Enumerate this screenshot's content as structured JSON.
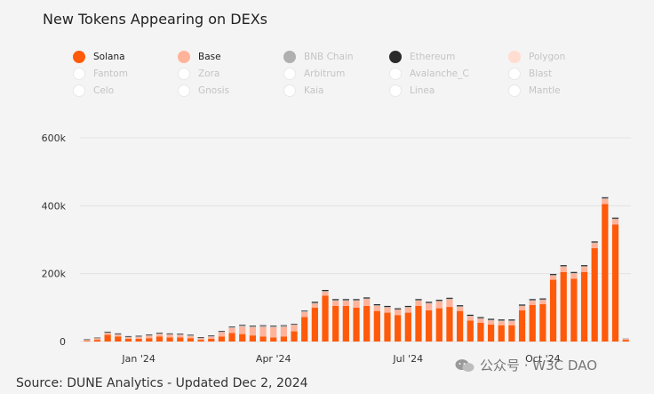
{
  "title": "New Tokens Appearing on DEXs",
  "legend": [
    {
      "name": "Solana",
      "color": "#ff5a0a",
      "active": true
    },
    {
      "name": "Base",
      "color": "#ffb39a",
      "active": true
    },
    {
      "name": "BNB Chain",
      "color": "#b0b0b0",
      "active": false
    },
    {
      "name": "Ethereum",
      "color": "#2a2a2a",
      "active": false
    },
    {
      "name": "Polygon",
      "color": "#ffddd0",
      "active": false
    },
    {
      "name": "Fantom",
      "color": "#ffffff",
      "active": false
    },
    {
      "name": "Zora",
      "color": "#ffffff",
      "active": false
    },
    {
      "name": "Arbitrum",
      "color": "#ffffff",
      "active": false
    },
    {
      "name": "Avalanche_C",
      "color": "#ffffff",
      "active": false
    },
    {
      "name": "Blast",
      "color": "#ffffff",
      "active": false
    },
    {
      "name": "Celo",
      "color": "#ffffff",
      "active": false
    },
    {
      "name": "Gnosis",
      "color": "#ffffff",
      "active": false
    },
    {
      "name": "Kaia",
      "color": "#ffffff",
      "active": false
    },
    {
      "name": "Linea",
      "color": "#ffffff",
      "active": false
    },
    {
      "name": "Mantle",
      "color": "#ffffff",
      "active": false
    }
  ],
  "source": "Source: DUNE Analytics - Updated Dec 2, 2024",
  "watermark": "公众号 · W3C DAO",
  "chart_data": {
    "type": "bar",
    "stacked": true,
    "interval": "weekly",
    "x_ticks": [
      "Jan '24",
      "Apr '24",
      "Jul '24",
      "Oct '24"
    ],
    "y_ticks": [
      "0",
      "200k",
      "400k",
      "600k"
    ],
    "ylim": [
      0,
      600000
    ],
    "grid": true,
    "series": [
      {
        "name": "Solana",
        "color": "#ff5a0a",
        "values": [
          2000,
          5000,
          20000,
          15000,
          8000,
          8000,
          10000,
          15000,
          12000,
          12000,
          10000,
          5000,
          8000,
          15000,
          25000,
          22000,
          18000,
          15000,
          12000,
          15000,
          30000,
          72000,
          100000,
          135000,
          105000,
          105000,
          100000,
          105000,
          90000,
          85000,
          78000,
          85000,
          105000,
          92000,
          98000,
          102000,
          90000,
          62000,
          55000,
          50000,
          48000,
          48000,
          92000,
          108000,
          110000,
          182000,
          205000,
          185000,
          205000,
          275000,
          405000,
          345000,
          5000
        ]
      },
      {
        "name": "Base",
        "color": "#ffb39a",
        "values": [
          2000,
          4000,
          5000,
          5000,
          4000,
          5000,
          7000,
          7000,
          8000,
          7000,
          6000,
          4000,
          6000,
          12000,
          15000,
          22000,
          24000,
          28000,
          30000,
          28000,
          18000,
          15000,
          12000,
          12000,
          15000,
          15000,
          20000,
          20000,
          15000,
          15000,
          15000,
          15000,
          15000,
          20000,
          20000,
          22000,
          12000,
          12000,
          12000,
          12000,
          12000,
          12000,
          12000,
          12000,
          12000,
          12000,
          15000,
          15000,
          15000,
          15000,
          15000,
          15000,
          2000
        ]
      },
      {
        "name": "BNB Chain",
        "color": "#b0b0b0",
        "values": [
          1000,
          1000,
          2000,
          2000,
          2000,
          2000,
          2000,
          2000,
          2000,
          2000,
          2000,
          2000,
          2000,
          2000,
          2000,
          3000,
          3000,
          3000,
          3000,
          3000,
          2000,
          2000,
          2000,
          2000,
          2000,
          2000,
          2000,
          2000,
          2000,
          2000,
          2000,
          2000,
          2000,
          2000,
          2000,
          2000,
          2000,
          2000,
          2000,
          2000,
          2000,
          2000,
          2000,
          2000,
          2000,
          2000,
          2000,
          2000,
          2000,
          2000,
          2000,
          2000,
          1000
        ]
      },
      {
        "name": "Ethereum",
        "color": "#2a2a2a",
        "values": [
          1500,
          1500,
          2000,
          2000,
          2000,
          2000,
          2000,
          2000,
          2000,
          2000,
          2000,
          2000,
          2000,
          2000,
          2000,
          2000,
          2000,
          2000,
          2000,
          2000,
          2000,
          2000,
          3000,
          3000,
          3000,
          3000,
          3000,
          3000,
          3000,
          3000,
          3000,
          3000,
          3000,
          3000,
          3000,
          3000,
          3000,
          3000,
          3000,
          3000,
          3000,
          3000,
          3000,
          3000,
          3000,
          3000,
          3000,
          3000,
          3000,
          3000,
          3000,
          3000,
          500
        ]
      }
    ]
  }
}
